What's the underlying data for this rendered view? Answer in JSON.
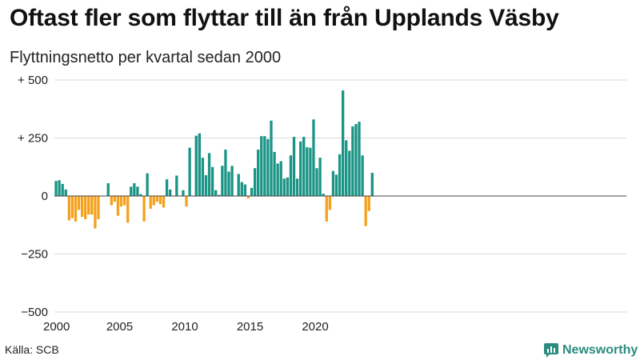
{
  "title": "Oftast fler som flyttar till än från Upplands Väsby",
  "subtitle": "Flyttningsnetto per kvartal sedan 2000",
  "source": "Källa: SCB",
  "brand": {
    "name": "Newsworthy",
    "icon": "newsworthy-logo-icon"
  },
  "colors": {
    "positive": "#1a9485",
    "negative": "#f4a11d",
    "grid": "#d9d9d9",
    "zero_line": "#444444"
  },
  "chart_data": {
    "type": "bar",
    "title": "Oftast fler som flyttar till än från Upplands Väsby",
    "subtitle": "Flyttningsnetto per kvartal sedan 2000",
    "ylim": [
      -500,
      500
    ],
    "yticks": [
      {
        "value": 500,
        "label": "+ 500"
      },
      {
        "value": 250,
        "label": "+ 250"
      },
      {
        "value": 0,
        "label": "0"
      },
      {
        "value": -250,
        "label": "−250"
      },
      {
        "value": -500,
        "label": "−500"
      }
    ],
    "xticks": [
      {
        "value": 2000,
        "label": "2000"
      },
      {
        "value": 2005,
        "label": "2005"
      },
      {
        "value": 2010,
        "label": "2010"
      },
      {
        "value": 2015,
        "label": "2015"
      },
      {
        "value": 2020,
        "label": "2020"
      }
    ],
    "x_start": 2000,
    "grid": true,
    "values": [
      65,
      68,
      52,
      28,
      -105,
      -95,
      -110,
      -60,
      -90,
      -100,
      -80,
      -80,
      -140,
      -100,
      0,
      0,
      55,
      -40,
      -25,
      -85,
      -45,
      -40,
      -115,
      40,
      55,
      40,
      8,
      -110,
      98,
      -55,
      -40,
      -25,
      -35,
      -50,
      72,
      28,
      0,
      88,
      0,
      25,
      -45,
      208,
      0,
      260,
      270,
      165,
      90,
      185,
      125,
      25,
      5,
      130,
      200,
      105,
      130,
      0,
      95,
      60,
      50,
      -10,
      35,
      120,
      200,
      258,
      258,
      245,
      325,
      190,
      140,
      150,
      75,
      80,
      175,
      255,
      75,
      235,
      255,
      210,
      208,
      330,
      120,
      165,
      10,
      -110,
      -60,
      108,
      92,
      180,
      455,
      240,
      195,
      300,
      310,
      320,
      175,
      -130,
      -65,
      100
    ]
  }
}
